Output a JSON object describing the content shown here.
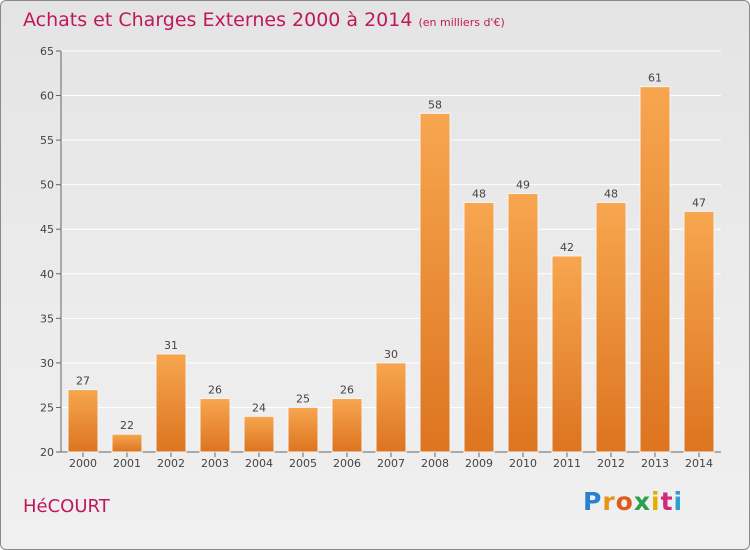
{
  "title": "Achats et Charges Externes 2000 à 2014",
  "subtitle": "(en milliers d'€)",
  "town": "HéCOURT",
  "logo": {
    "letters": [
      "P",
      "r",
      "o",
      "x",
      "i",
      "t",
      "i"
    ],
    "colors": [
      "#2a7fd0",
      "#e8931a",
      "#e05a1a",
      "#2aa04a",
      "#e0b000",
      "#d02a7a",
      "#2aa0d0"
    ]
  },
  "colors": {
    "bar_light": "#f7a64f",
    "bar_dark": "#dd7420",
    "title": "#c0185a",
    "grid": "#ffffff"
  },
  "chart_data": {
    "type": "bar",
    "categories": [
      "2000",
      "2001",
      "2002",
      "2003",
      "2004",
      "2005",
      "2006",
      "2007",
      "2008",
      "2009",
      "2010",
      "2011",
      "2012",
      "2013",
      "2014"
    ],
    "values": [
      27,
      22,
      31,
      26,
      24,
      25,
      26,
      30,
      58,
      48,
      49,
      42,
      48,
      61,
      47
    ],
    "title": "Achats et Charges Externes 2000 à 2014",
    "xlabel": "",
    "ylabel": "",
    "ylim": [
      20,
      65
    ],
    "yticks": [
      20,
      25,
      30,
      35,
      40,
      45,
      50,
      55,
      60,
      65
    ],
    "grid": true,
    "data_labels": true
  }
}
